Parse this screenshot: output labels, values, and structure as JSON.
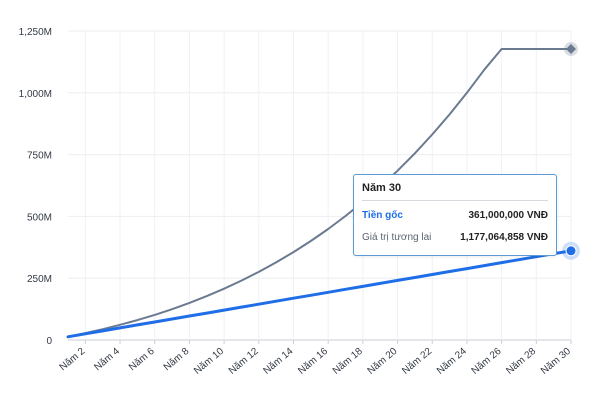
{
  "chart_data": {
    "type": "line",
    "x": [
      "Năm 1",
      "Năm 2",
      "Năm 3",
      "Năm 4",
      "Năm 5",
      "Năm 6",
      "Năm 7",
      "Năm 8",
      "Năm 9",
      "Năm 10",
      "Năm 11",
      "Năm 12",
      "Năm 13",
      "Năm 14",
      "Năm 15",
      "Năm 16",
      "Năm 17",
      "Năm 18",
      "Năm 19",
      "Năm 20",
      "Năm 21",
      "Năm 22",
      "Năm 23",
      "Năm 24",
      "Năm 25",
      "Năm 26",
      "Năm 27",
      "Năm 28",
      "Năm 29",
      "Năm 30"
    ],
    "x_tick_labels": [
      "Năm 2",
      "Năm 4",
      "Năm 6",
      "Năm 8",
      "Năm 10",
      "Năm 12",
      "Năm 14",
      "Năm 16",
      "Năm 18",
      "Năm 20",
      "Năm 22",
      "Năm 24",
      "Năm 26",
      "Năm 28",
      "Năm 30"
    ],
    "y_tick_labels": [
      "0",
      "250M",
      "500M",
      "750M",
      "1,000M",
      "1,250M"
    ],
    "ylim": [
      0,
      1250000000
    ],
    "grid": true,
    "series": [
      {
        "name": "Tiền gốc",
        "color": "#1f6ee8",
        "values": [
          13000000,
          25000000,
          37000000,
          49000000,
          61000000,
          73000000,
          85000000,
          97000000,
          109000000,
          121000000,
          133000000,
          145000000,
          157000000,
          169000000,
          181000000,
          193000000,
          205000000,
          217000000,
          229000000,
          241000000,
          253000000,
          265000000,
          277000000,
          289000000,
          301000000,
          313000000,
          325000000,
          337000000,
          349000000,
          361000000
        ]
      },
      {
        "name": "Giá trị tương lai",
        "color": "#6b7a90",
        "values": [
          13500000,
          27900000,
          43800000,
          61300000,
          80500000,
          101600000,
          124700000,
          150000000,
          177500000,
          207500000,
          240100000,
          275500000,
          313900000,
          355500000,
          400500000,
          449100000,
          501600000,
          558200000,
          619200000,
          684800000,
          755400000,
          831200000,
          912600000,
          999900000,
          1093500000,
          1177064858,
          1177064858,
          1177064858,
          1177064858,
          1177064858
        ]
      }
    ]
  },
  "tooltip": {
    "title": "Năm 30",
    "rows": [
      {
        "label": "Tiền gốc",
        "value": "361,000,000 VNĐ"
      },
      {
        "label": "Giá trị tương lai",
        "value": "1,177,064,858 VNĐ"
      }
    ]
  }
}
